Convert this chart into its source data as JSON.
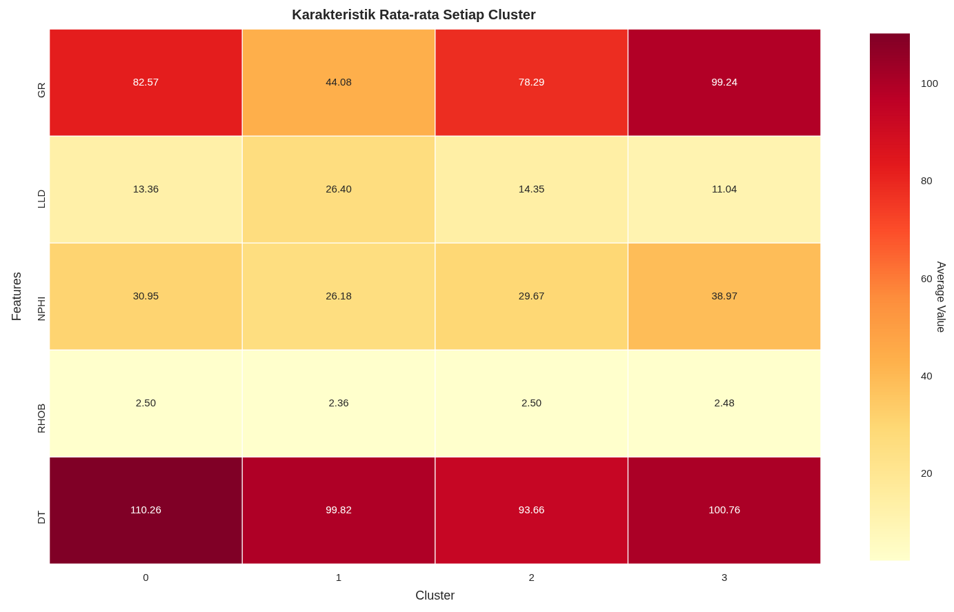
{
  "chart_data": {
    "type": "heatmap",
    "title": "Karakteristik Rata-rata Setiap Cluster",
    "xlabel": "Cluster",
    "ylabel": "Features",
    "clabel": "Average Value",
    "categories": [
      "0",
      "1",
      "2",
      "3"
    ],
    "y_categories": [
      "GR",
      "LLD",
      "NPHI",
      "RHOB",
      "DT"
    ],
    "cells": [
      [
        82.57,
        44.08,
        78.29,
        99.24
      ],
      [
        13.36,
        26.4,
        14.35,
        11.04
      ],
      [
        30.95,
        26.18,
        29.67,
        38.97
      ],
      [
        2.5,
        2.36,
        2.5,
        2.48
      ],
      [
        110.26,
        99.82,
        93.66,
        100.76
      ]
    ],
    "cell_labels": [
      [
        "82.57",
        "44.08",
        "78.29",
        "99.24"
      ],
      [
        "13.36",
        "26.40",
        "14.35",
        "11.04"
      ],
      [
        "30.95",
        "26.18",
        "29.67",
        "38.97"
      ],
      [
        "2.50",
        "2.36",
        "2.50",
        "2.48"
      ],
      [
        "110.26",
        "99.82",
        "93.66",
        "100.76"
      ]
    ],
    "clim": [
      2.36,
      110.26
    ],
    "cticks": [
      20,
      40,
      60,
      80,
      100
    ]
  }
}
